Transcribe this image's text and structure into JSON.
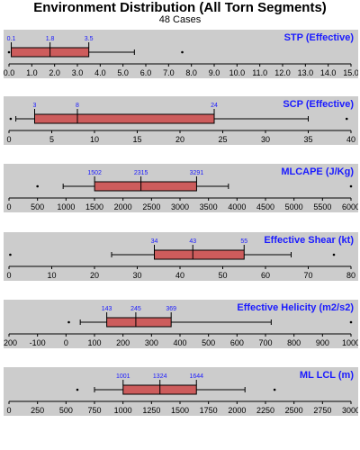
{
  "title": "Environment Distribution (All Torn Segments)",
  "subtitle": "48 Cases",
  "colors": {
    "panel_bg": "#cccccc",
    "box_fill": "#cd5c5c",
    "label_color": "#1a1aff",
    "axis": "#000000"
  },
  "chart_data": [
    {
      "type": "box",
      "title": "STP (Effective)",
      "xlim": [
        0,
        15
      ],
      "ticks": [
        "0.0",
        "1.0",
        "2.0",
        "3.0",
        "4.0",
        "5.0",
        "6.0",
        "7.0",
        "8.0",
        "9.0",
        "10.0",
        "11.0",
        "12.0",
        "13.0",
        "14.0",
        "15.0"
      ],
      "tick_values": [
        0,
        1,
        2,
        3,
        4,
        5,
        6,
        7,
        8,
        9,
        10,
        11,
        12,
        13,
        14,
        15
      ],
      "whisker_low": 0.1,
      "q1": 0.1,
      "median": 1.8,
      "q3": 3.5,
      "whisker_high": 5.5,
      "outliers": [
        0.0,
        7.6
      ],
      "labels": {
        "q1": "0.1",
        "median": "1.8",
        "q3": "3.5"
      }
    },
    {
      "type": "box",
      "title": "SCP (Effective)",
      "xlim": [
        0,
        40
      ],
      "ticks": [
        "0",
        "5",
        "10",
        "15",
        "20",
        "25",
        "30",
        "35",
        "40"
      ],
      "tick_values": [
        0,
        5,
        10,
        15,
        20,
        25,
        30,
        35,
        40
      ],
      "whisker_low": 0.8,
      "q1": 3,
      "median": 8,
      "q3": 24,
      "whisker_high": 35,
      "outliers": [
        0.2,
        39.5
      ],
      "labels": {
        "q1": "3",
        "median": "8",
        "q3": "24"
      }
    },
    {
      "type": "box",
      "title": "MLCAPE (J/Kg)",
      "xlim": [
        0,
        6000
      ],
      "ticks": [
        "0",
        "500",
        "1000",
        "1500",
        "2000",
        "2500",
        "3000",
        "3500",
        "4000",
        "4500",
        "5000",
        "5500",
        "6000"
      ],
      "tick_values": [
        0,
        500,
        1000,
        1500,
        2000,
        2500,
        3000,
        3500,
        4000,
        4500,
        5000,
        5500,
        6000
      ],
      "whisker_low": 950,
      "q1": 1502,
      "median": 2315,
      "q3": 3291,
      "whisker_high": 3850,
      "outliers": [
        500,
        6000
      ],
      "labels": {
        "q1": "1502",
        "median": "2315",
        "q3": "3291"
      }
    },
    {
      "type": "box",
      "title": "Effective Shear (kt)",
      "xlim": [
        0,
        80
      ],
      "ticks": [
        "0",
        "10",
        "20",
        "30",
        "40",
        "50",
        "60",
        "70",
        "80"
      ],
      "tick_values": [
        0,
        10,
        20,
        30,
        40,
        50,
        60,
        70,
        80
      ],
      "whisker_low": 24,
      "q1": 34,
      "median": 43,
      "q3": 55,
      "whisker_high": 66,
      "outliers": [
        0.3,
        76
      ],
      "labels": {
        "q1": "34",
        "median": "43",
        "q3": "55"
      }
    },
    {
      "type": "box",
      "title": "Effective Helicity (m2/s2)",
      "xlim": [
        -200,
        1000
      ],
      "ticks": [
        "-200",
        "-100",
        "0",
        "100",
        "200",
        "300",
        "400",
        "500",
        "600",
        "700",
        "800",
        "900",
        "1000"
      ],
      "tick_values": [
        -200,
        -100,
        0,
        100,
        200,
        300,
        400,
        500,
        600,
        700,
        800,
        900,
        1000
      ],
      "whisker_low": 50,
      "q1": 143,
      "median": 245,
      "q3": 369,
      "whisker_high": 720,
      "outliers": [
        10,
        1000
      ],
      "labels": {
        "q1": "143",
        "median": "245",
        "q3": "369"
      }
    },
    {
      "type": "box",
      "title": "ML LCL (m)",
      "xlim": [
        0,
        3000
      ],
      "ticks": [
        "0",
        "250",
        "500",
        "750",
        "1000",
        "1250",
        "1500",
        "1750",
        "2000",
        "2250",
        "2500",
        "2750",
        "3000"
      ],
      "tick_values": [
        0,
        250,
        500,
        750,
        1000,
        1250,
        1500,
        1750,
        2000,
        2250,
        2500,
        2750,
        3000
      ],
      "whisker_low": 750,
      "q1": 1001,
      "median": 1324,
      "q3": 1644,
      "whisker_high": 2070,
      "outliers": [
        600,
        2330
      ],
      "labels": {
        "q1": "1001",
        "median": "1324",
        "q3": "1644"
      }
    }
  ]
}
